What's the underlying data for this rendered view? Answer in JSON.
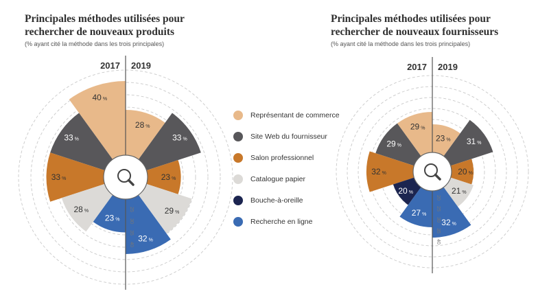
{
  "chart_data": [
    {
      "type": "rose",
      "title": "Principales méthodes utilisées pour rechercher de nouveaux produits",
      "subtitle": "(% ayant cité la méthode dans les trois principales)",
      "left_label": "2017",
      "right_label": "2019",
      "radial_ticks": [
        "25",
        "30",
        "35",
        "40"
      ],
      "radial_max": 40,
      "unit": "%",
      "left": [
        {
          "category": "Représentant de commerce",
          "value": 40
        },
        {
          "category": "Site Web du fournisseur",
          "value": 33
        },
        {
          "category": "Salon professionnel",
          "value": 33
        },
        {
          "category": "Catalogue papier",
          "value": 28
        },
        {
          "category": "Recherche en ligne",
          "value": 23
        }
      ],
      "right": [
        {
          "category": "Représentant de commerce",
          "value": 28
        },
        {
          "category": "Site Web du fournisseur",
          "value": 33
        },
        {
          "category": "Salon professionnel",
          "value": 23
        },
        {
          "category": "Catalogue papier",
          "value": 29
        },
        {
          "category": "Recherche en ligne",
          "value": 32
        }
      ]
    },
    {
      "type": "rose",
      "title": "Principales méthodes utilisées pour rechercher de nouveaux fournisseurs",
      "subtitle": "(% ayant cité la méthode dans les trois principales)",
      "left_label": "2017",
      "right_label": "2019",
      "radial_ticks": [
        "20",
        "25",
        "30",
        "35",
        "40"
      ],
      "radial_max": 40,
      "unit": "%",
      "left": [
        {
          "category": "Représentant de commerce",
          "value": 29
        },
        {
          "category": "Site Web du fournisseur",
          "value": 29
        },
        {
          "category": "Salon professionnel",
          "value": 32
        },
        {
          "category": "Bouche-à-oreille",
          "value": 20
        },
        {
          "category": "Recherche en ligne",
          "value": 27
        }
      ],
      "right": [
        {
          "category": "Représentant de commerce",
          "value": 23
        },
        {
          "category": "Site Web du fournisseur",
          "value": 31
        },
        {
          "category": "Salon professionnel",
          "value": 20
        },
        {
          "category": "Catalogue papier",
          "value": 21
        },
        {
          "category": "Recherche en ligne",
          "value": 32
        }
      ]
    }
  ],
  "legend": [
    {
      "label": "Représentant de commerce",
      "color": "#e8b98a"
    },
    {
      "label": "Site Web du fournisseur",
      "color": "#58575a"
    },
    {
      "label": "Salon professionnel",
      "color": "#c8782a"
    },
    {
      "label": "Catalogue papier",
      "color": "#dcdad7"
    },
    {
      "label": "Bouche-à-oreille",
      "color": "#1c2550"
    },
    {
      "label": "Recherche en ligne",
      "color": "#3a6bb3"
    }
  ],
  "center_icon": "magnifier-icon"
}
